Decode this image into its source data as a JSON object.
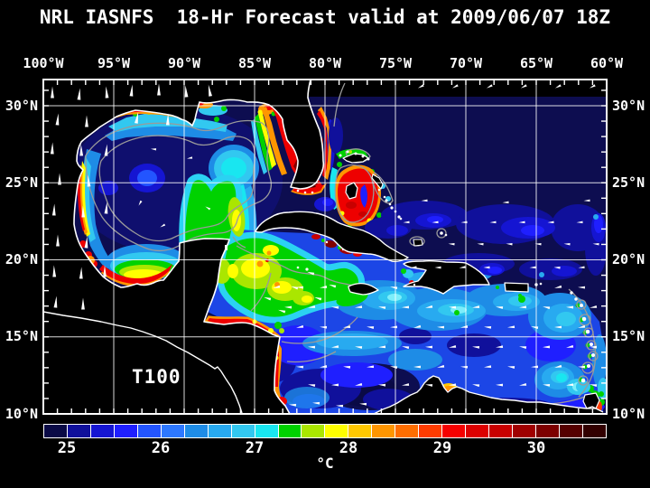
{
  "title": "NRL IASNFS  18-Hr Forecast valid at 2009/06/07 18Z",
  "map": {
    "depth_label": "T100"
  },
  "axes": {
    "lon_labels": [
      "100°W",
      "95°W",
      "90°W",
      "85°W",
      "80°W",
      "75°W",
      "70°W",
      "65°W",
      "60°W"
    ],
    "lat_labels_left": [
      "30°N",
      "25°N",
      "20°N",
      "15°N",
      "10°N"
    ],
    "lat_labels_right": [
      "30°N",
      "25°N",
      "20°N",
      "15°N",
      "10°N"
    ]
  },
  "colorbar": {
    "unit": "°C",
    "tick_labels": [
      "25",
      "26",
      "27",
      "28",
      "29",
      "30"
    ],
    "value_range": [
      24.75,
      30.75
    ],
    "colors": [
      "#0a0a46",
      "#10109b",
      "#1515d2",
      "#1f1fff",
      "#2355ff",
      "#2d78ff",
      "#1e8ce6",
      "#28aaf0",
      "#32c8f0",
      "#19e6f0",
      "#00d200",
      "#aae600",
      "#ffff00",
      "#ffc800",
      "#ff9600",
      "#ff6e00",
      "#ff3c00",
      "#f50000",
      "#dc0000",
      "#c80000",
      "#a00000",
      "#7d0000",
      "#550000",
      "#320000"
    ]
  },
  "colors": {
    "background": "#000000",
    "land": "#000000",
    "ocean_deep": "#0d0d50",
    "coastline": "#ffffff",
    "contour_gray": "#9a9a9a",
    "graticule": "#ffffff",
    "vector": "#ffffff",
    "text": "#ffffff"
  }
}
